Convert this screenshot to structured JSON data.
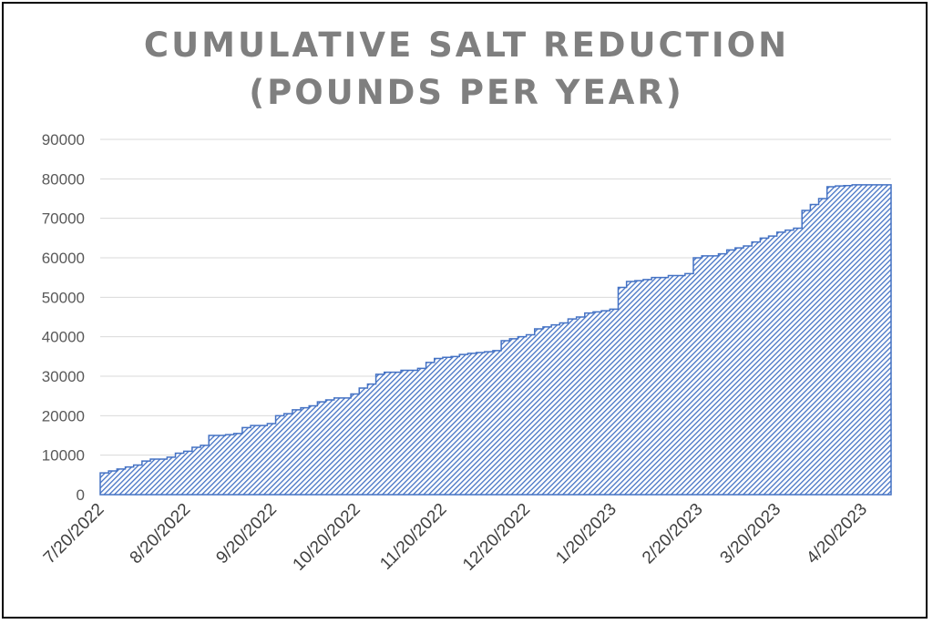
{
  "chart_data": {
    "type": "area",
    "title_lines": [
      "CUMULATIVE SALT REDUCTION",
      "(POUNDS PER YEAR)"
    ],
    "xlabel": "",
    "ylabel": "",
    "ylim": [
      0,
      90000
    ],
    "y_ticks": [
      0,
      10000,
      20000,
      30000,
      40000,
      50000,
      60000,
      70000,
      80000,
      90000
    ],
    "x_tick_labels": [
      "7/20/2022",
      "8/20/2022",
      "9/20/2022",
      "10/20/2022",
      "11/20/2022",
      "12/20/2022",
      "1/20/2023",
      "2/20/2023",
      "3/20/2023",
      "4/20/2023"
    ],
    "x_range": [
      "7/20/2022",
      "4/30/2023"
    ],
    "grid": true,
    "legend": "none",
    "series": [
      {
        "fill_color": "#4472c4",
        "x": [
          "7/20/2022",
          "7/23/2022",
          "7/26/2022",
          "7/29/2022",
          "8/1/2022",
          "8/4/2022",
          "8/7/2022",
          "8/10/2022",
          "8/13/2022",
          "8/16/2022",
          "8/19/2022",
          "8/22/2022",
          "8/25/2022",
          "8/28/2022",
          "8/31/2022",
          "9/3/2022",
          "9/6/2022",
          "9/9/2022",
          "9/12/2022",
          "9/15/2022",
          "9/18/2022",
          "9/21/2022",
          "9/24/2022",
          "9/27/2022",
          "9/30/2022",
          "10/3/2022",
          "10/6/2022",
          "10/9/2022",
          "10/12/2022",
          "10/15/2022",
          "10/18/2022",
          "10/21/2022",
          "10/24/2022",
          "10/27/2022",
          "10/30/2022",
          "11/2/2022",
          "11/5/2022",
          "11/8/2022",
          "11/11/2022",
          "11/14/2022",
          "11/17/2022",
          "11/20/2022",
          "11/23/2022",
          "11/26/2022",
          "11/29/2022",
          "12/2/2022",
          "12/5/2022",
          "12/8/2022",
          "12/11/2022",
          "12/14/2022",
          "12/17/2022",
          "12/20/2022",
          "12/23/2022",
          "12/26/2022",
          "12/29/2022",
          "1/1/2023",
          "1/4/2023",
          "1/7/2023",
          "1/10/2023",
          "1/13/2023",
          "1/16/2023",
          "1/19/2023",
          "1/22/2023",
          "1/25/2023",
          "1/28/2023",
          "1/31/2023",
          "2/3/2023",
          "2/6/2023",
          "2/9/2023",
          "2/12/2023",
          "2/15/2023",
          "2/18/2023",
          "2/21/2023",
          "2/24/2023",
          "2/27/2023",
          "3/2/2023",
          "3/5/2023",
          "3/8/2023",
          "3/11/2023",
          "3/14/2023",
          "3/17/2023",
          "3/20/2023",
          "3/23/2023",
          "3/26/2023",
          "3/29/2023",
          "4/1/2023",
          "4/4/2023",
          "4/7/2023",
          "4/10/2023",
          "4/13/2023",
          "4/16/2023",
          "4/19/2023",
          "4/22/2023",
          "4/25/2023",
          "4/28/2023",
          "4/30/2023"
        ],
        "y": [
          5500,
          6000,
          6500,
          7000,
          7500,
          8500,
          9000,
          9000,
          9500,
          10500,
          11000,
          12000,
          12500,
          15000,
          15000,
          15200,
          15500,
          17000,
          17500,
          17500,
          18000,
          20000,
          20500,
          21500,
          22000,
          22500,
          23500,
          24000,
          24500,
          24500,
          25500,
          27000,
          28000,
          30500,
          31000,
          31000,
          31500,
          31500,
          32000,
          33500,
          34500,
          34800,
          35000,
          35500,
          35800,
          36000,
          36200,
          36500,
          39000,
          39500,
          40000,
          40500,
          42000,
          42500,
          43000,
          43500,
          44500,
          45000,
          46000,
          46300,
          46600,
          47000,
          52500,
          54000,
          54200,
          54500,
          55000,
          55000,
          55500,
          55500,
          56000,
          60000,
          60500,
          60500,
          61000,
          62000,
          62500,
          63000,
          64000,
          65000,
          65500,
          66500,
          67000,
          67500,
          72000,
          73500,
          75000,
          78000,
          78200,
          78300,
          78500,
          78500,
          78500,
          78500,
          78500,
          78500
        ]
      }
    ]
  }
}
